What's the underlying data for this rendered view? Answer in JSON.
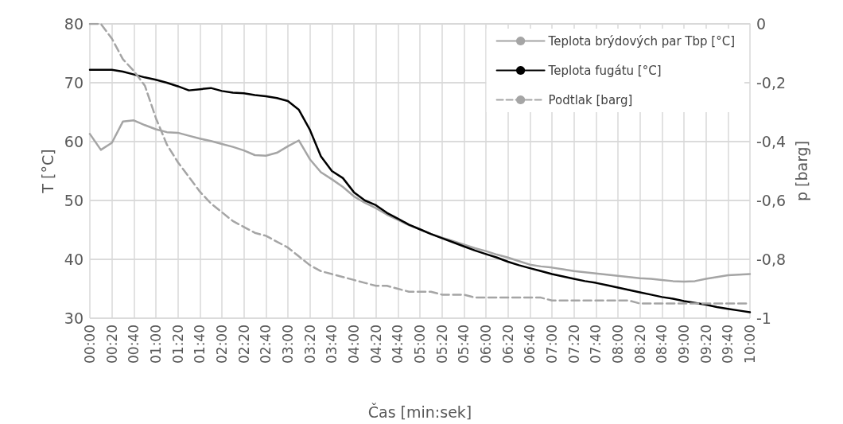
{
  "chart_data": {
    "type": "line",
    "xlabel": "Čas [min:sek]",
    "ylabel": "T [°C]",
    "y2label": "p [barg]",
    "categories": [
      "00:00",
      null,
      "00:20",
      null,
      "00:40",
      null,
      "01:00",
      null,
      "01:20",
      null,
      "01:40",
      null,
      "02:00",
      null,
      "02:20",
      null,
      "02:40",
      null,
      "03:00",
      null,
      "03:20",
      null,
      "03:40",
      null,
      "04:00",
      null,
      "04:20",
      null,
      "04:40",
      null,
      "05:00",
      null,
      "05:20",
      null,
      "05:40",
      null,
      "06:00",
      null,
      "06:20",
      null,
      "06:40",
      null,
      "07:00",
      null,
      "07:20",
      null,
      "07:40",
      null,
      "08:00",
      null,
      "08:20",
      null,
      "08:40",
      null,
      "09:00",
      null,
      "09:20",
      null,
      "09:40",
      null,
      "10:00"
    ],
    "series": [
      {
        "name": "Teplota brýdových par Tbp [°C]",
        "color": "#a5a5a5",
        "values": [
          61.3,
          58.6,
          59.8,
          63.4,
          63.6,
          62.8,
          62.1,
          61.6,
          61.5,
          61.0,
          60.5,
          60.1,
          59.6,
          59.1,
          58.5,
          57.7,
          57.6,
          58.1,
          59.2,
          60.2,
          57.0,
          54.8,
          53.6,
          52.3,
          50.7,
          49.6,
          48.7,
          47.6,
          46.7,
          45.8,
          45.1,
          44.3,
          43.7,
          43.1,
          42.5,
          41.9,
          41.4,
          40.8,
          40.3,
          39.7,
          39.1,
          38.8,
          38.6,
          38.3,
          38.0,
          37.8,
          37.6,
          37.4,
          37.2,
          37.0,
          36.8,
          36.7,
          36.5,
          36.3,
          36.2,
          36.3,
          36.7,
          37.0,
          37.3,
          37.4,
          37.5
        ]
      },
      {
        "name": "Teplota fugátu [°C]",
        "color": "#000000",
        "values": [
          72.2,
          72.2,
          72.2,
          71.9,
          71.4,
          70.9,
          70.5,
          70.0,
          69.4,
          68.7,
          68.9,
          69.1,
          68.6,
          68.3,
          68.2,
          67.9,
          67.7,
          67.4,
          66.9,
          65.4,
          62.0,
          57.5,
          55.0,
          53.8,
          51.4,
          50.0,
          49.2,
          47.9,
          46.9,
          45.9,
          45.1,
          44.3,
          43.6,
          42.9,
          42.2,
          41.5,
          40.9,
          40.3,
          39.6,
          39.0,
          38.5,
          38.0,
          37.5,
          37.1,
          36.7,
          36.3,
          36.0,
          35.6,
          35.2,
          34.8,
          34.4,
          34.0,
          33.6,
          33.3,
          32.9,
          32.6,
          32.3,
          31.9,
          31.6,
          31.3,
          31.0
        ]
      },
      {
        "name": "Podtlak [barg]",
        "color": "#a5a5a5",
        "axis": "y2",
        "line_style": "dashed",
        "values": [
          0,
          0,
          -0.05,
          -0.12,
          -0.16,
          -0.21,
          -0.32,
          -0.41,
          -0.47,
          -0.52,
          -0.57,
          -0.61,
          -0.64,
          -0.67,
          -0.69,
          -0.71,
          -0.72,
          -0.74,
          -0.76,
          -0.79,
          -0.82,
          -0.84,
          -0.85,
          -0.86,
          -0.87,
          -0.88,
          -0.89,
          -0.89,
          -0.9,
          -0.91,
          -0.91,
          -0.91,
          -0.92,
          -0.92,
          -0.92,
          -0.93,
          -0.93,
          -0.93,
          -0.93,
          -0.93,
          -0.93,
          -0.93,
          -0.94,
          -0.94,
          -0.94,
          -0.94,
          -0.94,
          -0.94,
          -0.94,
          -0.94,
          -0.95,
          -0.95,
          -0.95,
          -0.95,
          -0.95,
          -0.95,
          -0.95,
          -0.95,
          -0.95,
          -0.95,
          -0.95
        ]
      }
    ],
    "ylim": [
      30,
      80
    ],
    "yticks": [
      30,
      40,
      50,
      60,
      70,
      80
    ],
    "y2lim": [
      -1,
      0
    ],
    "y2ticks": [
      {
        "value": -1,
        "label": "-1"
      },
      {
        "value": -0.8,
        "label": "-0,8"
      },
      {
        "value": -0.6,
        "label": "-0,6"
      },
      {
        "value": -0.4,
        "label": "-0,4"
      },
      {
        "value": -0.2,
        "label": "-0,2"
      },
      {
        "value": 0,
        "label": "0"
      }
    ],
    "grid": true,
    "legend": "top right",
    "marker": "none",
    "line_style": "solid"
  }
}
